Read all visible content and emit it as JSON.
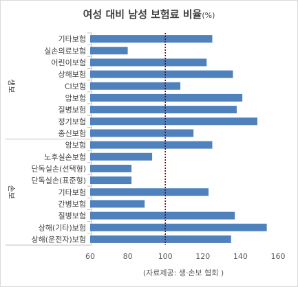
{
  "chart_data": {
    "type": "bar",
    "orientation": "horizontal",
    "title": "여성 대비 남성 보험료 비율",
    "title_unit": "(%)",
    "source": "(자료제공: 생·손보 협회 )",
    "xlim": [
      60,
      160
    ],
    "xticks": [
      "60",
      "80",
      "100",
      "120",
      "140",
      "160"
    ],
    "reference_line": {
      "value": 100,
      "style": "dotted",
      "color": "#8b0000"
    },
    "bar_color": "#4f81bd",
    "groups": [
      {
        "name": "생보",
        "categories": [
          "기타보험",
          "실손의료보험",
          "어린이보험",
          "상해보험",
          "CI보험",
          "암보험",
          "질병보험",
          "정기보험",
          "종신보험"
        ],
        "values": [
          125,
          80,
          122,
          136,
          108,
          141,
          138,
          149,
          115
        ]
      },
      {
        "name": "손보",
        "categories": [
          "암보험",
          "노후실손보험",
          "단독실손(선택형)",
          "단독실손(표준형)",
          "기타보험",
          "간병보험",
          "질병보험",
          "상해(기타)보험",
          "상해(운전자)보험"
        ],
        "values": [
          125,
          93,
          82,
          82,
          123,
          89,
          137,
          154,
          135
        ]
      }
    ]
  }
}
